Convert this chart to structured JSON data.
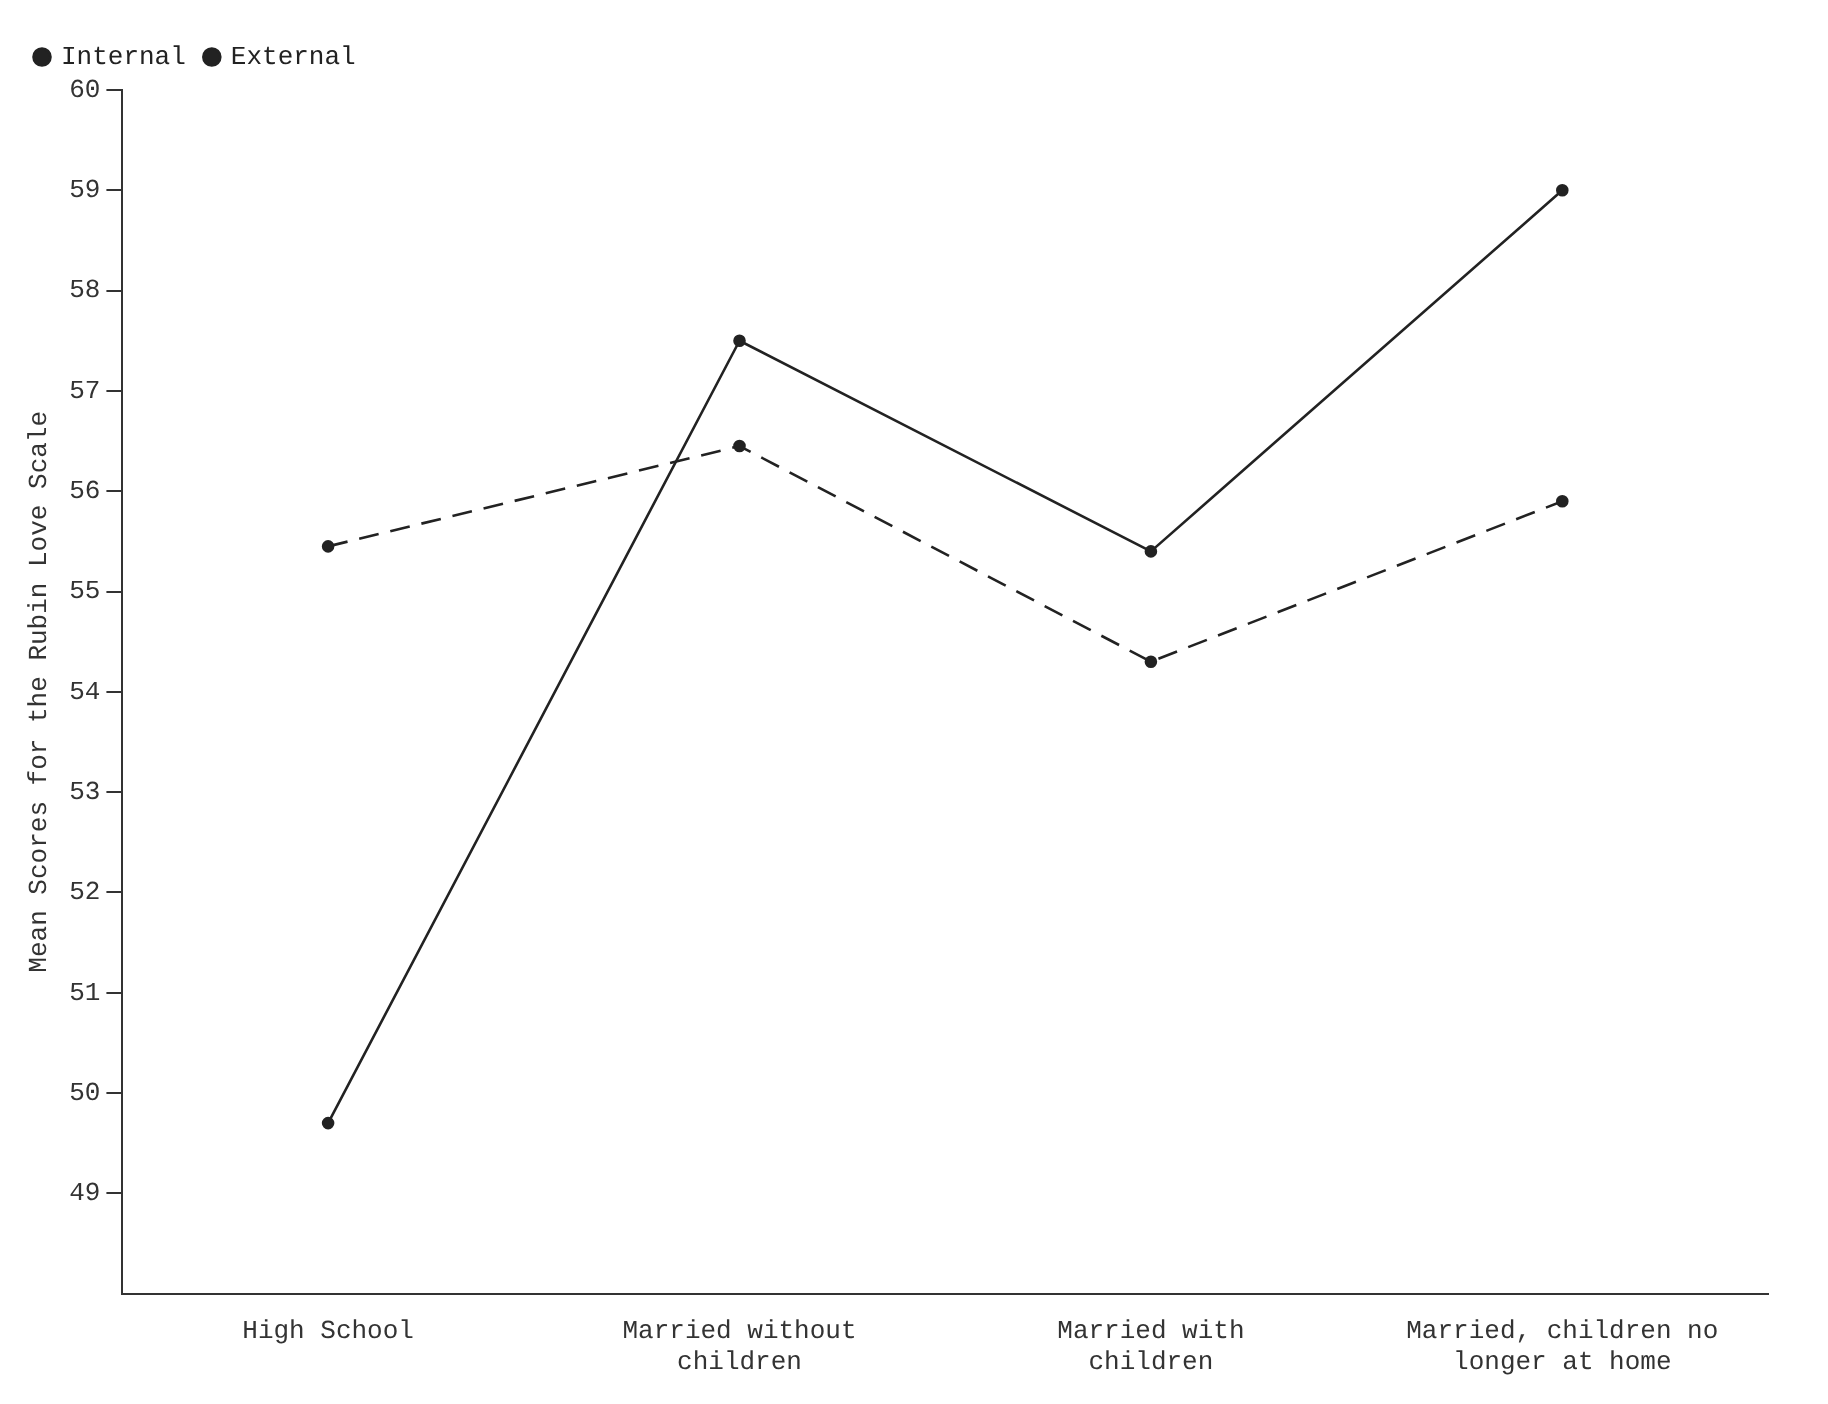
{
  "chart_data": {
    "type": "line",
    "ylabel": "Mean Scores for the Rubin Love Scale",
    "categories": [
      "High School",
      "Married without children",
      "Married with children",
      "Married, children no longer at home"
    ],
    "series": [
      {
        "name": "Internal",
        "color": "#222222",
        "line_style": "solid",
        "values": [
          49.7,
          57.5,
          55.4,
          59.0
        ]
      },
      {
        "name": "External",
        "color": "#222222",
        "line_style": "dashed",
        "values": [
          55.45,
          56.45,
          54.3,
          55.9
        ]
      }
    ],
    "ylim": [
      48,
      60
    ],
    "yticks": [
      49,
      50,
      51,
      52,
      53,
      54,
      55,
      56,
      57,
      58,
      59,
      60
    ],
    "grid": false,
    "legend": "top left",
    "marker": "circle"
  }
}
